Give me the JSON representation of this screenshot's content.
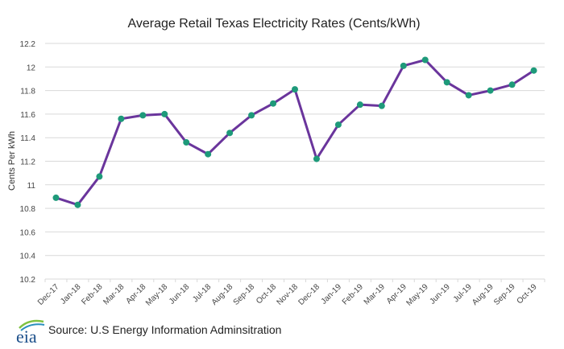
{
  "chart_data": {
    "type": "line",
    "title": "Average Retail Texas Electricity Rates (Cents/kWh)",
    "xlabel": "",
    "ylabel": "Cents Per kWh",
    "ylim": [
      10.2,
      12.2
    ],
    "yticks": [
      10.2,
      10.4,
      10.6,
      10.8,
      11,
      11.2,
      11.4,
      11.6,
      11.8,
      12,
      12.2
    ],
    "grid": true,
    "categories": [
      "Dec-17",
      "Jan-18",
      "Feb-18",
      "Mar-18",
      "Apr-18",
      "May-18",
      "Jun-18",
      "Jul-18",
      "Aug-18",
      "Sep-18",
      "Oct-18",
      "Nov-18",
      "Dec-18",
      "Jan-19",
      "Feb-19",
      "Mar-19",
      "Apr-19",
      "May-19",
      "Jun-19",
      "Jul-19",
      "Aug-19",
      "Sep-19",
      "Oct-19"
    ],
    "values": [
      10.89,
      10.83,
      11.07,
      11.56,
      11.59,
      11.6,
      11.36,
      11.26,
      11.44,
      11.59,
      11.69,
      11.81,
      11.22,
      11.51,
      11.68,
      11.67,
      12.01,
      12.06,
      11.87,
      11.76,
      11.8,
      11.85,
      11.97
    ],
    "line_color": "#6a359c",
    "marker_color": "#1e9a7a",
    "grid_color": "#d9d9d9"
  },
  "footer": {
    "logo_text": "eia",
    "source": "Source: U.S Energy Information Adminsitration"
  }
}
